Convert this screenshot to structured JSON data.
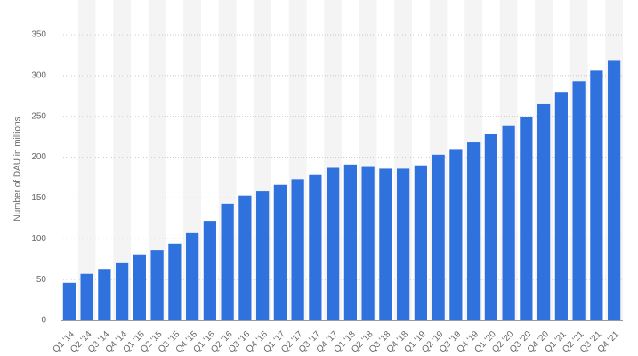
{
  "chart_data": {
    "type": "bar",
    "y_label": "Number of DAU in millions",
    "categories": [
      "Q1 '14",
      "Q2 '14",
      "Q3 '14",
      "Q4 '14",
      "Q1 '15",
      "Q2 '15",
      "Q3 '15",
      "Q4 '15",
      "Q1 '16",
      "Q2 '16",
      "Q3 '16",
      "Q4 '16",
      "Q1 '17",
      "Q2 '17",
      "Q3 '17",
      "Q4 '17",
      "Q1 '18",
      "Q2 '18",
      "Q3 '18",
      "Q4 '18",
      "Q1 '19",
      "Q2 '19",
      "Q3 '19",
      "Q4 '19",
      "Q1 '20",
      "Q2 '20",
      "Q3 '20",
      "Q4 '20",
      "Q1 '21",
      "Q2 '21",
      "Q3 '21",
      "Q4 '21"
    ],
    "values": [
      46,
      57,
      63,
      71,
      81,
      86,
      94,
      107,
      122,
      143,
      153,
      158,
      166,
      173,
      178,
      187,
      191,
      188,
      186,
      186,
      190,
      203,
      210,
      218,
      229,
      238,
      249,
      265,
      280,
      293,
      306,
      319
    ],
    "color": "#2f72de",
    "ylim": [
      0,
      350
    ],
    "yticks": [
      0,
      50,
      100,
      150,
      200,
      250,
      300,
      350
    ],
    "grid": true
  }
}
